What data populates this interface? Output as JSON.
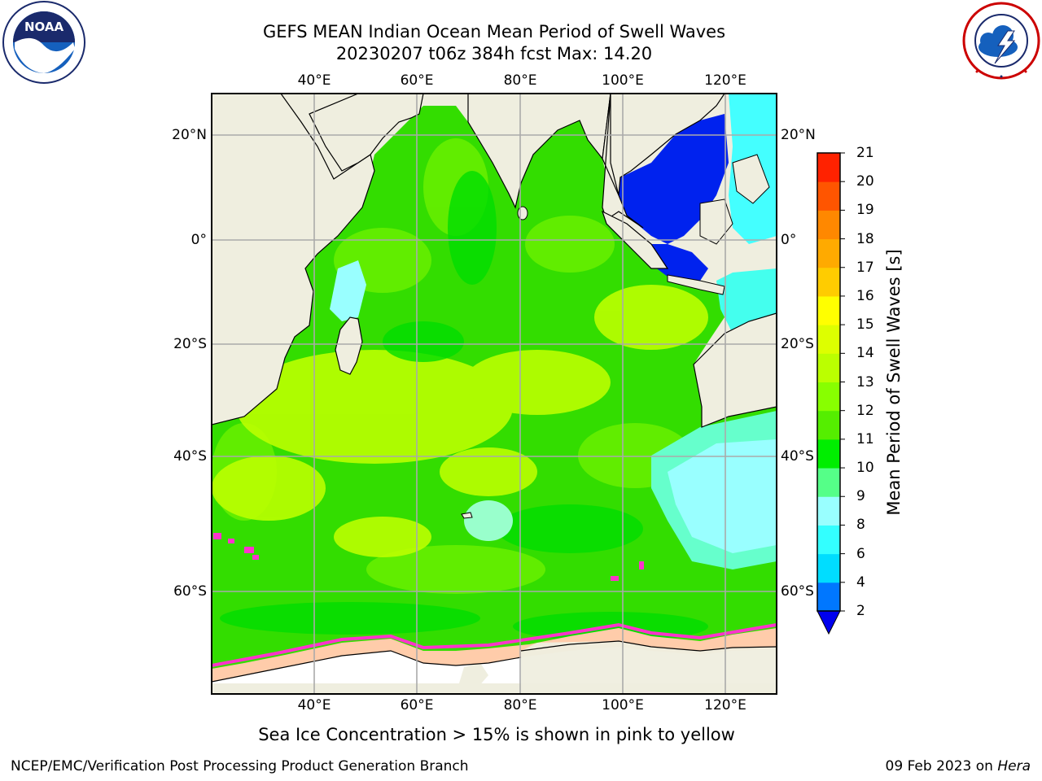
{
  "title_line1": "GEFS MEAN Indian Ocean Mean Period of Swell Waves",
  "title_line2": "20230207 t06z 384h fcst   Max: 14.20",
  "logo_left": "NOAA",
  "logo_left_ring_text": "NATIONAL OCEANIC AND ATMOSPHERIC ADMINISTRATION · U.S. DEPARTMENT OF COMMERCE",
  "logo_right_ring_text": "NATIONAL WEATHER SERVICE",
  "map": {
    "lon_labels": [
      "40°E",
      "60°E",
      "80°E",
      "100°E",
      "120°E"
    ],
    "lon_values": [
      40,
      60,
      80,
      100,
      120
    ],
    "lat_labels": [
      "20°N",
      "0°",
      "20°S",
      "40°S",
      "60°S"
    ],
    "lat_values": [
      20,
      0,
      -20,
      -40,
      -60
    ],
    "lon_range": [
      20,
      130
    ],
    "lat_range": [
      -75,
      28
    ],
    "colors": {
      "land": "#efeedf",
      "grid": "#aaaaaa",
      "green": "#33dd00",
      "light_green": "#66ee00",
      "yellow_green": "#bbff00",
      "dark_blue": "#0022ee",
      "cyan": "#33ffff",
      "light_cyan": "#99ffff"
    }
  },
  "colorbar": {
    "ticks": [
      "2",
      "4",
      "6",
      "8",
      "9",
      "10",
      "11",
      "12",
      "13",
      "14",
      "15",
      "16",
      "17",
      "18",
      "19",
      "20",
      "21"
    ],
    "colors": [
      "#0000ee",
      "#0077ff",
      "#00ddff",
      "#33ffff",
      "#99ffff",
      "#55ff88",
      "#00ee00",
      "#55ee00",
      "#88ff00",
      "#bbff00",
      "#ddff00",
      "#ffff00",
      "#ffcc00",
      "#ffaa00",
      "#ff8800",
      "#ff5500",
      "#ff2200",
      "#ff0000"
    ],
    "label": "Mean Period of Swell Waves [s]"
  },
  "ice_note": "Sea Ice Concentration > 15% is shown in pink to yellow",
  "footer_left": "NCEP/EMC/Verification Post Processing Product Generation Branch",
  "footer_right_date": "09 Feb 2023 on",
  "footer_right_host": "Hera"
}
